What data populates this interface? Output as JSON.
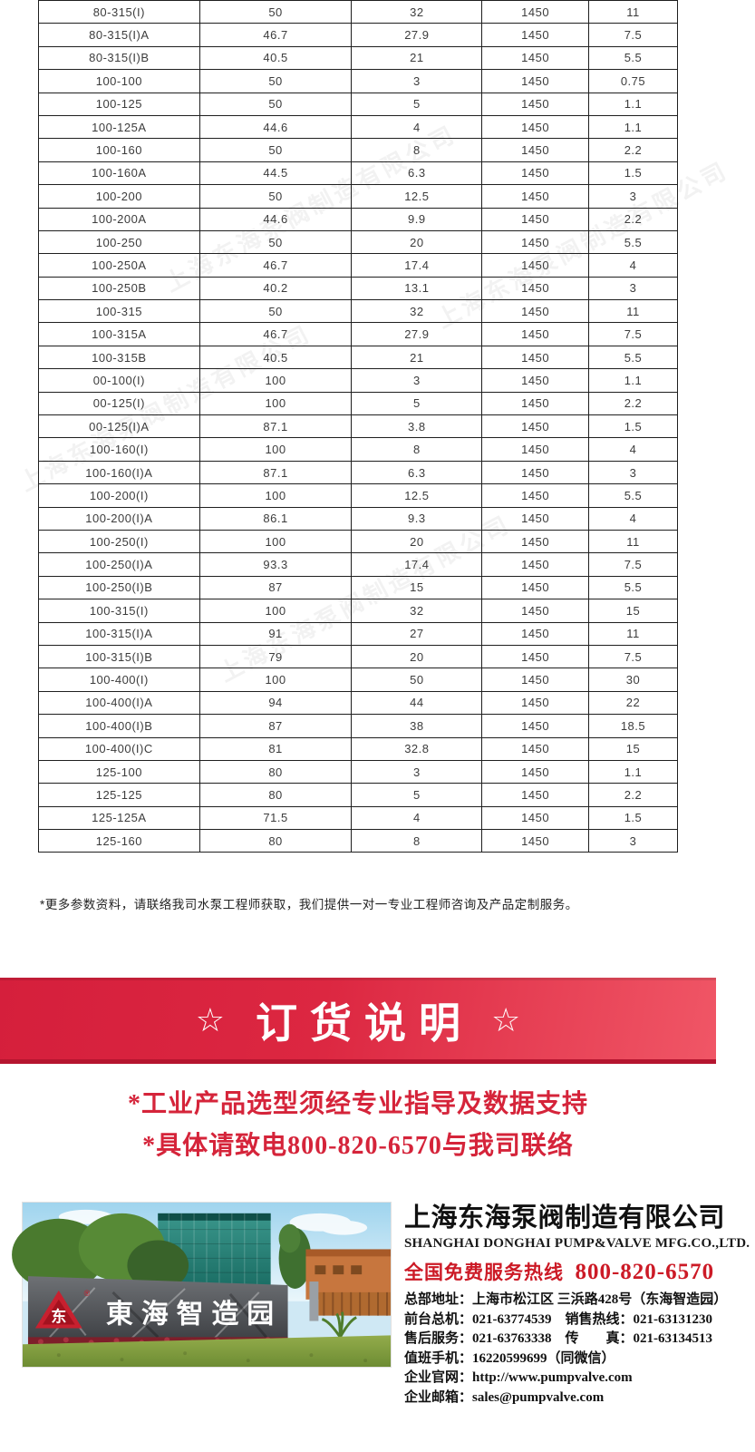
{
  "table": {
    "rows": [
      [
        "80-315(I)",
        "50",
        "32",
        "1450",
        "11"
      ],
      [
        "80-315(I)A",
        "46.7",
        "27.9",
        "1450",
        "7.5"
      ],
      [
        "80-315(I)B",
        "40.5",
        "21",
        "1450",
        "5.5"
      ],
      [
        "100-100",
        "50",
        "3",
        "1450",
        "0.75"
      ],
      [
        "100-125",
        "50",
        "5",
        "1450",
        "1.1"
      ],
      [
        "100-125A",
        "44.6",
        "4",
        "1450",
        "1.1"
      ],
      [
        "100-160",
        "50",
        "8",
        "1450",
        "2.2"
      ],
      [
        "100-160A",
        "44.5",
        "6.3",
        "1450",
        "1.5"
      ],
      [
        "100-200",
        "50",
        "12.5",
        "1450",
        "3"
      ],
      [
        "100-200A",
        "44.6",
        "9.9",
        "1450",
        "2.2"
      ],
      [
        "100-250",
        "50",
        "20",
        "1450",
        "5.5"
      ],
      [
        "100-250A",
        "46.7",
        "17.4",
        "1450",
        "4"
      ],
      [
        "100-250B",
        "40.2",
        "13.1",
        "1450",
        "3"
      ],
      [
        "100-315",
        "50",
        "32",
        "1450",
        "11"
      ],
      [
        "100-315A",
        "46.7",
        "27.9",
        "1450",
        "7.5"
      ],
      [
        "100-315B",
        "40.5",
        "21",
        "1450",
        "5.5"
      ],
      [
        "00-100(I)",
        "100",
        "3",
        "1450",
        "1.1"
      ],
      [
        "00-125(I)",
        "100",
        "5",
        "1450",
        "2.2"
      ],
      [
        "00-125(I)A",
        "87.1",
        "3.8",
        "1450",
        "1.5"
      ],
      [
        "100-160(I)",
        "100",
        "8",
        "1450",
        "4"
      ],
      [
        "100-160(I)A",
        "87.1",
        "6.3",
        "1450",
        "3"
      ],
      [
        "100-200(I)",
        "100",
        "12.5",
        "1450",
        "5.5"
      ],
      [
        "100-200(I)A",
        "86.1",
        "9.3",
        "1450",
        "4"
      ],
      [
        "100-250(I)",
        "100",
        "20",
        "1450",
        "11"
      ],
      [
        "100-250(I)A",
        "93.3",
        "17.4",
        "1450",
        "7.5"
      ],
      [
        "100-250(I)B",
        "87",
        "15",
        "1450",
        "5.5"
      ],
      [
        "100-315(I)",
        "100",
        "32",
        "1450",
        "15"
      ],
      [
        "100-315(I)A",
        "91",
        "27",
        "1450",
        "11"
      ],
      [
        "100-315(I)B",
        "79",
        "20",
        "1450",
        "7.5"
      ],
      [
        "100-400(I)",
        "100",
        "50",
        "1450",
        "30"
      ],
      [
        "100-400(I)A",
        "94",
        "44",
        "1450",
        "22"
      ],
      [
        "100-400(I)B",
        "87",
        "38",
        "1450",
        "18.5"
      ],
      [
        "100-400(I)C",
        "81",
        "32.8",
        "1450",
        "15"
      ],
      [
        "125-100",
        "80",
        "3",
        "1450",
        "1.1"
      ],
      [
        "125-125",
        "80",
        "5",
        "1450",
        "2.2"
      ],
      [
        "125-125A",
        "71.5",
        "4",
        "1450",
        "1.5"
      ],
      [
        "125-160",
        "80",
        "8",
        "1450",
        "3"
      ]
    ]
  },
  "footnote": "*更多参数资料，请联络我司水泵工程师获取，我们提供一对一专业工程师咨询及产品定制服务。",
  "banner": {
    "star": "☆",
    "title": "订货说明"
  },
  "notices": [
    "*工业产品选型须经专业指导及数据支持",
    "*具体请致电800-820-6570与我司联络"
  ],
  "company": {
    "name_cn": "上海东海泵阀制造有限公司",
    "name_en": "SHANGHAI DONGHAI PUMP&VALVE MFG.CO.,LTD.",
    "hotline_label": "全国免费服务热线",
    "hotline_number": "800-820-6570",
    "contact_lines": [
      "总部地址：上海市松江区 三浜路428号（东海智造园）",
      "前台总机：021-63774539　销售热线：021-63131230",
      "售后服务：021-63763338　传　　真：021-63134513",
      "值班手机：16220599699（同微信）",
      "企业官网：http://www.pumpvalve.com",
      "企业邮箱：sales@pumpvalve.com"
    ]
  },
  "photo": {
    "sign_text": "東海智造园",
    "logo_glyph": "东",
    "registered_mark": "®"
  },
  "watermark": {
    "text": "上海东海泵阀制造有限公司"
  },
  "colors": {
    "banner_gradient_start": "#d51f3c",
    "banner_gradient_end": "#f05666",
    "banner_border": "#b5152f",
    "notice_red": "#d5243a",
    "hotline_red": "#cc1a26",
    "table_border": "#1f1f1f"
  }
}
